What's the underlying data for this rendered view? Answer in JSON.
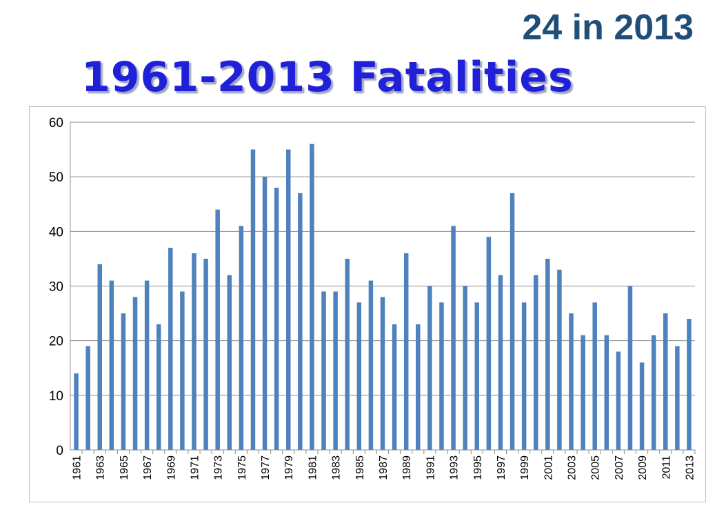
{
  "header": {
    "subtitle": "24 in 2013",
    "title": "1961-2013 Fatalities"
  },
  "colors": {
    "bar": "#4f81bd",
    "grid": "#8c8c8c",
    "axis": "#8c8c8c",
    "title": "#2020d8",
    "subtitle": "#1f4e79"
  },
  "chart_data": {
    "type": "bar",
    "title": "1961-2013 Fatalities",
    "xlabel": "",
    "ylabel": "",
    "ylim": [
      0,
      60
    ],
    "yticks": [
      0,
      10,
      20,
      30,
      40,
      50,
      60
    ],
    "grid": true,
    "legend": "none",
    "categories": [
      "1961",
      "1962",
      "1963",
      "1964",
      "1965",
      "1966",
      "1967",
      "1968",
      "1969",
      "1970",
      "1971",
      "1972",
      "1973",
      "1974",
      "1975",
      "1976",
      "1977",
      "1978",
      "1979",
      "1980",
      "1981",
      "1982",
      "1983",
      "1984",
      "1985",
      "1986",
      "1987",
      "1988",
      "1989",
      "1990",
      "1991",
      "1992",
      "1993",
      "1994",
      "1995",
      "1996",
      "1997",
      "1998",
      "1999",
      "2000",
      "2001",
      "2002",
      "2003",
      "2004",
      "2005",
      "2006",
      "2007",
      "2008",
      "2009",
      "2010",
      "2011",
      "2012",
      "2013"
    ],
    "x_tick_labels": [
      "1961",
      "1963",
      "1965",
      "1967",
      "1969",
      "1971",
      "1973",
      "1975",
      "1977",
      "1979",
      "1981",
      "1983",
      "1985",
      "1987",
      "1989",
      "1991",
      "1993",
      "1995",
      "1997",
      "1999",
      "2001",
      "2003",
      "2005",
      "2007",
      "2009",
      "2011",
      "2013"
    ],
    "values": [
      14,
      19,
      34,
      31,
      25,
      28,
      31,
      23,
      37,
      29,
      36,
      35,
      44,
      32,
      41,
      55,
      50,
      48,
      55,
      47,
      56,
      29,
      29,
      35,
      27,
      31,
      28,
      23,
      36,
      23,
      30,
      27,
      41,
      30,
      27,
      39,
      32,
      47,
      27,
      32,
      35,
      33,
      25,
      21,
      27,
      21,
      18,
      30,
      16,
      21,
      25,
      19,
      24
    ]
  }
}
